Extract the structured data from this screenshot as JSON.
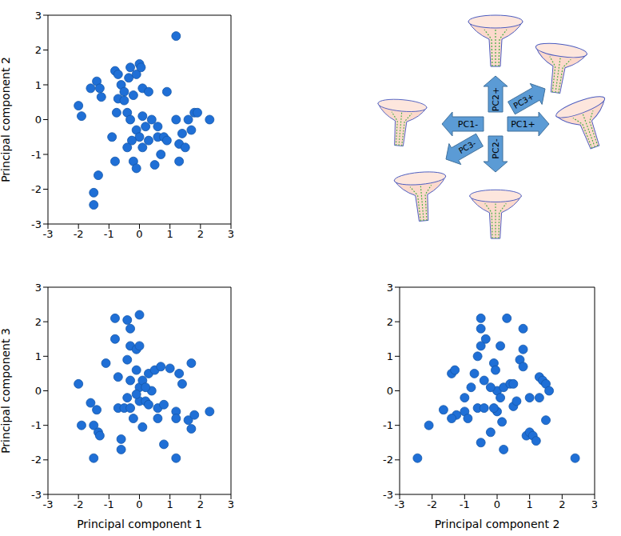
{
  "chart_data": [
    {
      "type": "scatter",
      "y_label": "Principal component 2",
      "color": "#1f6fd6",
      "marker": "circle",
      "xlim": [
        -3,
        3
      ],
      "xticks": [
        -3,
        -2,
        -1,
        0,
        1,
        2,
        3
      ],
      "ylim": [
        -3,
        3
      ],
      "yticks": [
        -3,
        -2,
        -1,
        0,
        1,
        2,
        3
      ],
      "x": [
        -2.0,
        -1.9,
        -1.6,
        -1.4,
        -1.3,
        -1.25,
        -1.35,
        -1.5,
        -1.5,
        -0.8,
        -0.7,
        -0.6,
        -0.5,
        -0.3,
        -0.35,
        -0.2,
        -0.1,
        0.0,
        0.05,
        0.1,
        0.3,
        0.9,
        1.2,
        -0.7,
        -0.75,
        -0.4,
        -0.5,
        -0.3,
        -0.1,
        0.1,
        0.0,
        -0.25,
        -0.4,
        -0.9,
        -0.8,
        -0.2,
        -0.1,
        0.1,
        0.3,
        0.5,
        0.6,
        0.7,
        0.8,
        0.9,
        1.2,
        1.3,
        1.3,
        1.4,
        1.5,
        1.6,
        1.7,
        1.8,
        1.9,
        2.3,
        0.2,
        0.4,
        0.6
      ],
      "values": [
        0.4,
        0.1,
        0.9,
        1.1,
        0.9,
        0.65,
        -1.6,
        -2.1,
        -2.45,
        1.4,
        1.3,
        1.0,
        0.8,
        1.5,
        1.2,
        0.7,
        1.3,
        1.6,
        1.5,
        0.9,
        0.8,
        0.8,
        2.4,
        0.6,
        0.2,
        0.2,
        0.55,
        0.0,
        -0.3,
        0.1,
        -0.5,
        -0.6,
        -0.8,
        -0.5,
        -1.2,
        -1.2,
        -1.4,
        -0.8,
        -0.6,
        -1.3,
        -0.5,
        -1.0,
        -0.5,
        -0.6,
        0.0,
        -0.7,
        -1.2,
        -0.4,
        -0.8,
        0.0,
        -0.3,
        0.2,
        0.2,
        0.0,
        -0.2,
        0.0,
        -0.2
      ]
    },
    {
      "type": "scatter",
      "x_label": "Principal component 1",
      "y_label": "Principal component 3",
      "color": "#1f6fd6",
      "marker": "circle",
      "xlim": [
        -3,
        3
      ],
      "xticks": [
        -3,
        -2,
        -1,
        0,
        1,
        2,
        3
      ],
      "ylim": [
        -3,
        3
      ],
      "yticks": [
        -3,
        -2,
        -1,
        0,
        1,
        2,
        3
      ],
      "x": [
        -2.0,
        -1.9,
        -1.6,
        -1.5,
        -1.5,
        -1.4,
        -1.35,
        -1.3,
        -1.1,
        -0.8,
        -0.8,
        -0.7,
        -0.7,
        -0.6,
        -0.6,
        -0.5,
        -0.4,
        -0.3,
        -0.4,
        -0.3,
        -0.3,
        -0.4,
        -0.3,
        -0.2,
        -0.1,
        -0.1,
        0.0,
        0.0,
        0.0,
        0.0,
        0.1,
        0.1,
        0.2,
        0.3,
        0.3,
        0.4,
        0.5,
        0.6,
        0.6,
        0.7,
        0.8,
        0.8,
        1.0,
        1.2,
        1.2,
        1.2,
        1.3,
        1.4,
        1.6,
        1.7,
        1.7,
        1.8,
        2.3,
        -0.1,
        0.2
      ],
      "values": [
        0.2,
        -1.0,
        -0.35,
        -1.0,
        -1.95,
        -0.55,
        -1.2,
        -1.3,
        0.8,
        2.1,
        1.5,
        0.4,
        -0.5,
        -1.4,
        -1.7,
        -0.5,
        2.05,
        1.8,
        0.9,
        1.3,
        0.3,
        -0.2,
        -0.5,
        -0.8,
        1.2,
        0.6,
        2.2,
        1.3,
        0.1,
        -0.3,
        0.3,
        -1.05,
        -0.3,
        0.5,
        -0.4,
        0.0,
        0.6,
        -0.8,
        -0.5,
        0.7,
        -0.4,
        -1.55,
        0.65,
        -0.6,
        -0.8,
        -1.95,
        0.5,
        0.2,
        -0.85,
        -1.1,
        0.8,
        -0.7,
        -0.6,
        -0.1,
        0.1
      ]
    },
    {
      "type": "scatter",
      "x_label": "Principal component 2",
      "color": "#1f6fd6",
      "marker": "circle",
      "xlim": [
        -3,
        3
      ],
      "xticks": [
        -3,
        -2,
        -1,
        0,
        1,
        2,
        3
      ],
      "ylim": [
        -3,
        3
      ],
      "yticks": [
        -3,
        -2,
        -1,
        0,
        1,
        2,
        3
      ],
      "x": [
        -2.45,
        -2.1,
        -1.65,
        -1.4,
        -1.3,
        -1.25,
        -1.4,
        -1.0,
        -1.0,
        -0.9,
        -0.8,
        -0.7,
        -0.6,
        -0.6,
        -0.5,
        -0.5,
        -0.5,
        -0.5,
        -0.4,
        -0.4,
        -0.35,
        -0.2,
        -0.1,
        -0.05,
        0.0,
        0.0,
        0.1,
        0.1,
        0.15,
        0.2,
        0.2,
        0.3,
        0.4,
        0.5,
        0.5,
        0.6,
        0.7,
        0.8,
        0.8,
        0.8,
        0.9,
        1.0,
        1.0,
        1.1,
        1.2,
        1.3,
        1.3,
        1.4,
        1.5,
        1.5,
        1.6,
        2.4,
        -0.2,
        -0.1
      ],
      "values": [
        -1.95,
        -1.0,
        -0.55,
        0.5,
        0.6,
        -0.7,
        -0.8,
        -0.6,
        -0.2,
        -0.8,
        0.1,
        0.5,
        1.0,
        -0.5,
        2.1,
        1.8,
        1.3,
        -1.5,
        0.3,
        -0.5,
        1.5,
        -1.2,
        0.8,
        0.6,
        0.0,
        -0.6,
        1.3,
        -0.2,
        -0.9,
        0.1,
        -1.7,
        2.1,
        0.2,
        -0.45,
        0.2,
        -0.3,
        0.9,
        0.7,
        1.8,
        1.2,
        -1.3,
        -0.2,
        -1.2,
        -1.3,
        -1.45,
        -0.2,
        0.4,
        0.3,
        -0.85,
        0.2,
        0.0,
        -1.95,
        0.1,
        -0.5
      ]
    }
  ],
  "diagram": {
    "arrows": [
      "PC2+",
      "PC2-",
      "PC1-",
      "PC1+",
      "PC3+",
      "PC3-"
    ]
  }
}
